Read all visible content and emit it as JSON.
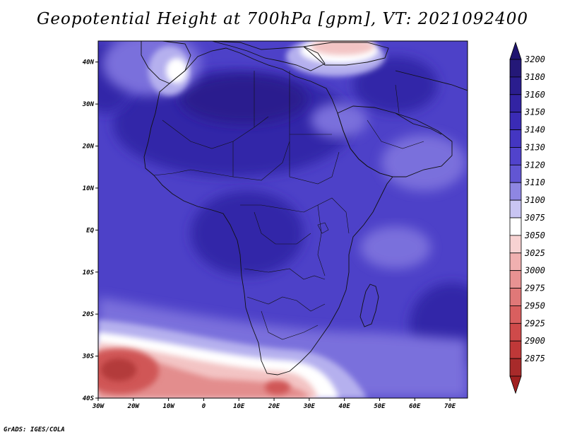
{
  "title": "Geopotential Height at 700hPa [gpm], VT: 2021092400",
  "credit": "GrADS: IGES/COLA",
  "map": {
    "lon_range": [
      -30,
      75
    ],
    "lat_range": [
      -40,
      45
    ],
    "lat_ticks": [
      {
        "v": 40,
        "label": "40N"
      },
      {
        "v": 30,
        "label": "30N"
      },
      {
        "v": 20,
        "label": "20N"
      },
      {
        "v": 10,
        "label": "10N"
      },
      {
        "v": 0,
        "label": "EQ"
      },
      {
        "v": -10,
        "label": "10S"
      },
      {
        "v": -20,
        "label": "20S"
      },
      {
        "v": -30,
        "label": "30S"
      },
      {
        "v": -40,
        "label": "40S"
      }
    ],
    "lon_ticks": [
      {
        "v": -30,
        "label": "30W"
      },
      {
        "v": -20,
        "label": "20W"
      },
      {
        "v": -10,
        "label": "10W"
      },
      {
        "v": 0,
        "label": "0"
      },
      {
        "v": 10,
        "label": "10E"
      },
      {
        "v": 20,
        "label": "20E"
      },
      {
        "v": 30,
        "label": "30E"
      },
      {
        "v": 40,
        "label": "40E"
      },
      {
        "v": 50,
        "label": "50E"
      },
      {
        "v": 60,
        "label": "60E"
      },
      {
        "v": 70,
        "label": "70E"
      }
    ]
  },
  "colorbar": {
    "levels": [
      {
        "label": "3200",
        "color": "#241878"
      },
      {
        "label": "3180",
        "color": "#2a1d8e"
      },
      {
        "label": "3160",
        "color": "#3223a3"
      },
      {
        "label": "3150",
        "color": "#3a2bb5"
      },
      {
        "label": "3140",
        "color": "#4436c2"
      },
      {
        "label": "3130",
        "color": "#5143cc"
      },
      {
        "label": "3120",
        "color": "#6256d3"
      },
      {
        "label": "3110",
        "color": "#8e86e2"
      },
      {
        "label": "3100",
        "color": "#c9c5f3"
      },
      {
        "label": "3075",
        "color": "#ffffff"
      },
      {
        "label": "3050",
        "color": "#f7d2d2"
      },
      {
        "label": "3025",
        "color": "#f0b0b0"
      },
      {
        "label": "3000",
        "color": "#e89292"
      },
      {
        "label": "2975",
        "color": "#e07878"
      },
      {
        "label": "2950",
        "color": "#d95f5f"
      },
      {
        "label": "2925",
        "color": "#cf4a4a"
      },
      {
        "label": "2900",
        "color": "#bf3838"
      },
      {
        "label": "2875",
        "color": "#a82a2a"
      }
    ],
    "top_arrow_color": "#1f1470",
    "bottom_arrow_color": "#a02020"
  },
  "field_colors": {
    "base": "#4d41c8",
    "deep": "#3325a8",
    "deeper": "#2a1d8e",
    "light": "#7a70dc",
    "pale": "#b5b0ee",
    "white": "#ffffff",
    "pink": "#f3c4c4",
    "rose": "#e38d8d",
    "red": "#d05656",
    "darkred": "#b33a3a",
    "land_line": "#111111"
  }
}
